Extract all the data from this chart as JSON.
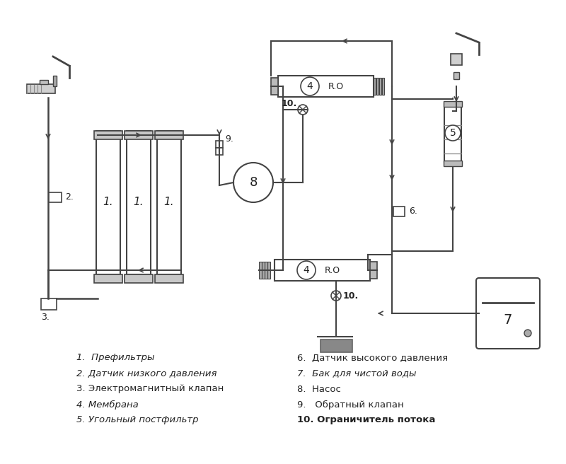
{
  "bg_color": "#ffffff",
  "line_color": "#444444",
  "line_width": 1.5,
  "legend_items_left": [
    "1.  Префильтры",
    "2. Датчик низкого давления",
    "3. Электромагнитный клапан",
    "4. Мембрана",
    "5. Угольный постфильтр"
  ],
  "legend_items_right": [
    "6.  Датчик высокого давления",
    "7.  Бак для чистой воды",
    "8.  Насос",
    "9.   Обратный клапан",
    "10. Ограничитель потока"
  ],
  "fig_width": 8.0,
  "fig_height": 6.56
}
